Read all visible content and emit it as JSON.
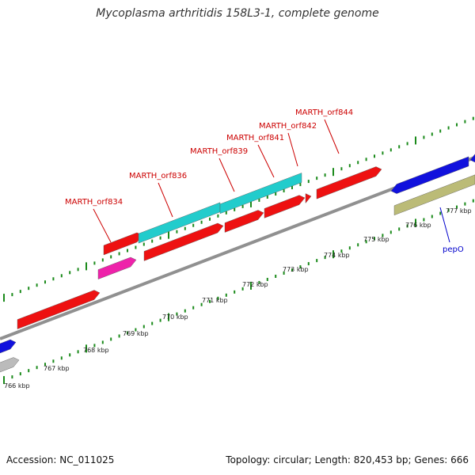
{
  "title": "Mycoplasma arthritidis 158L3-1, complete genome",
  "footer": {
    "accession": "Accession: NC_011025",
    "summary": "Topology: circular; Length: 820,453 bp; Genes: 666"
  },
  "colors": {
    "backbone": "#909090",
    "tick": "#1a8a1a",
    "gene_label": "#cc0000",
    "gene_label_blue": "#0000cc",
    "red": "#ee1111",
    "cyan": "#22cccc",
    "magenta": "#ee22aa",
    "blue": "#1111dd",
    "olive": "#bbbb77",
    "grey": "#bbbbbb"
  },
  "scale": {
    "unit": "kbp",
    "ticks": [
      {
        "label": "766 kbp"
      },
      {
        "label": "767 kbp"
      },
      {
        "label": "768 kbp"
      },
      {
        "label": "769 kbp"
      },
      {
        "label": "770 kbp"
      },
      {
        "label": "771 kbp"
      },
      {
        "label": "772 kbp"
      },
      {
        "label": "773 kbp"
      },
      {
        "label": "774 kbp"
      },
      {
        "label": "775 kbp"
      },
      {
        "label": "776 kbp"
      },
      {
        "label": "777 kbp"
      }
    ]
  },
  "gene_labels": [
    {
      "name": "MARTH_orf834",
      "color": "red"
    },
    {
      "name": "MARTH_orf836",
      "color": "red"
    },
    {
      "name": "MARTH_orf839",
      "color": "red"
    },
    {
      "name": "MARTH_orf841",
      "color": "red"
    },
    {
      "name": "MARTH_orf842",
      "color": "red"
    },
    {
      "name": "MARTH_orf844",
      "color": "red"
    },
    {
      "name": "pepO",
      "color": "blue"
    }
  ]
}
